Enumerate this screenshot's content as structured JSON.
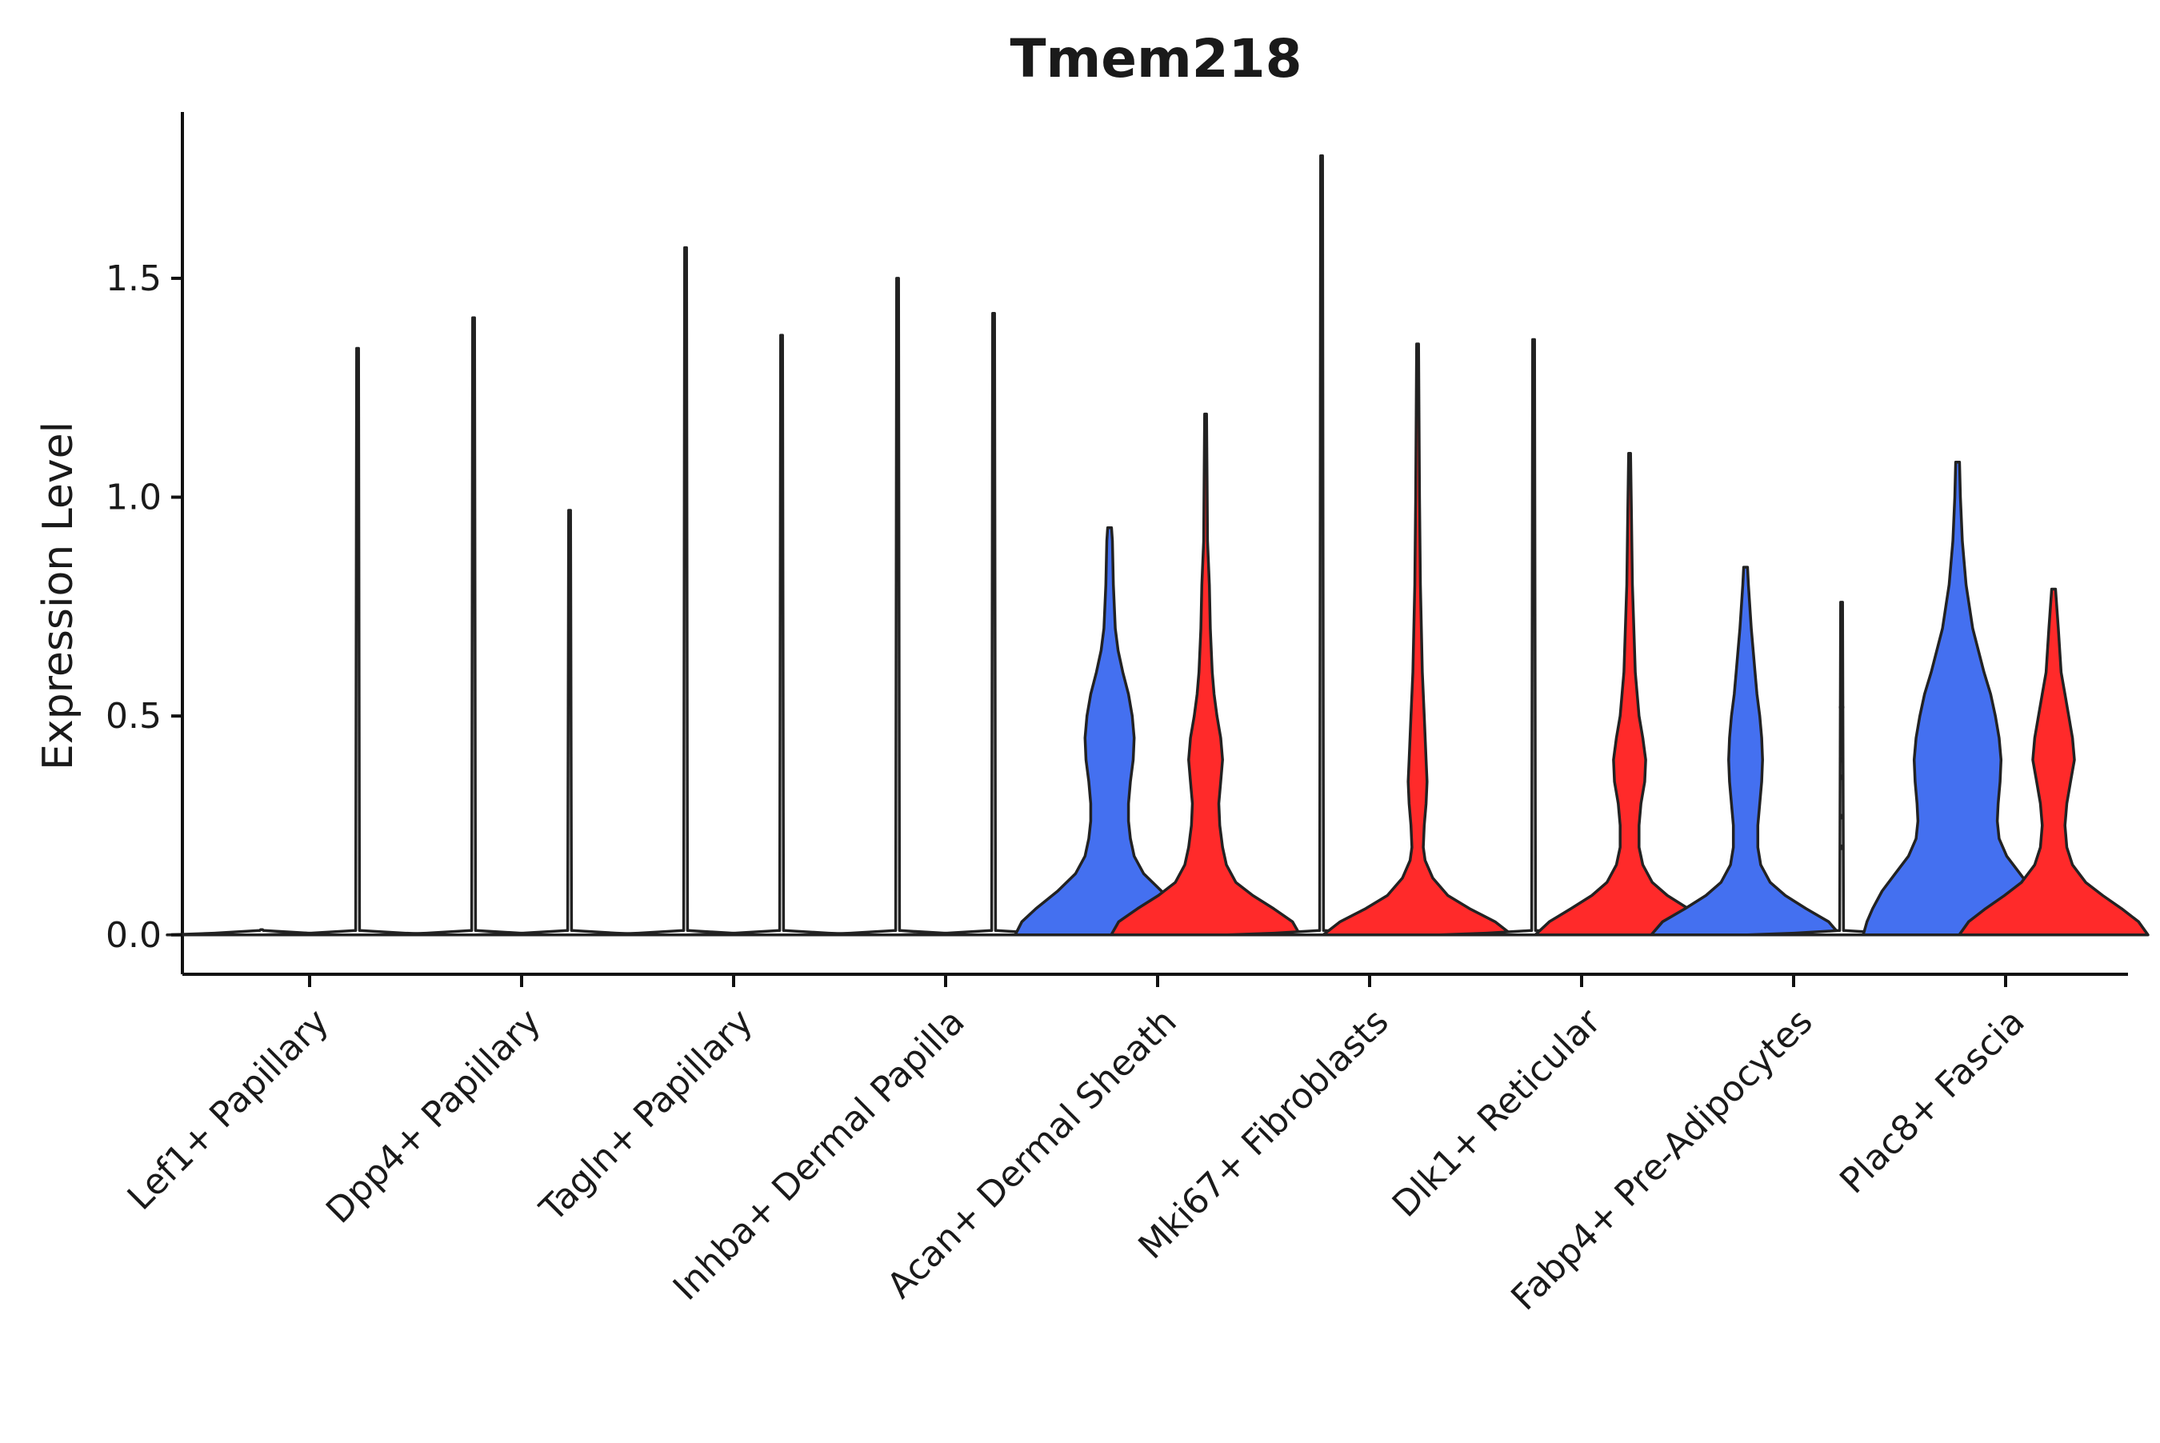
{
  "chart_data": {
    "type": "violin",
    "title": "Tmem218",
    "xlabel": "",
    "ylabel": "Expression Level",
    "ylim": [
      -0.09,
      1.88
    ],
    "yticks": [
      0.0,
      0.5,
      1.0,
      1.5
    ],
    "ytick_labels": [
      "0.0",
      "0.5",
      "1.0",
      "1.5"
    ],
    "grid": false,
    "legend": "none",
    "colors": {
      "group1": "#4470f0",
      "group2": "#ff2a2a",
      "flat": "#ffffff",
      "outline": "#222222"
    },
    "categories": [
      "Lef1+ Papillary",
      "Dpp4+ Papillary",
      "Tagln+ Papillary",
      "Inhba+ Dermal Papilla",
      "Acan+ Dermal Sheath",
      "Mki67+ Fibroblasts",
      "Dlk1+ Reticular",
      "Fabp4+ Pre-Adipocytes",
      "Plac8+ Fascia"
    ],
    "violins": [
      {
        "category": "Lef1+ Papillary",
        "group": "group1",
        "max": 0.0,
        "filled": false,
        "profile": "flat"
      },
      {
        "category": "Lef1+ Papillary",
        "group": "group2",
        "max": 1.34,
        "filled": false,
        "profile": "flat"
      },
      {
        "category": "Dpp4+ Papillary",
        "group": "group1",
        "max": 1.41,
        "filled": false,
        "profile": "flat"
      },
      {
        "category": "Dpp4+ Papillary",
        "group": "group2",
        "max": 0.97,
        "filled": false,
        "profile": "flat"
      },
      {
        "category": "Tagln+ Papillary",
        "group": "group1",
        "max": 1.57,
        "filled": false,
        "profile": "flat"
      },
      {
        "category": "Tagln+ Papillary",
        "group": "group2",
        "max": 1.37,
        "filled": false,
        "profile": "flat"
      },
      {
        "category": "Inhba+ Dermal Papilla",
        "group": "group1",
        "max": 1.5,
        "filled": false,
        "profile": "flat"
      },
      {
        "category": "Inhba+ Dermal Papilla",
        "group": "group2",
        "max": 1.42,
        "filled": false,
        "profile": "flat"
      },
      {
        "category": "Acan+ Dermal Sheath",
        "group": "group1",
        "max": 0.93,
        "filled": true,
        "profile": "A"
      },
      {
        "category": "Acan+ Dermal Sheath",
        "group": "group2",
        "max": 1.19,
        "filled": true,
        "profile": "B"
      },
      {
        "category": "Mki67+ Fibroblasts",
        "group": "group1",
        "max": 1.78,
        "filled": false,
        "profile": "flat"
      },
      {
        "category": "Mki67+ Fibroblasts",
        "group": "group2",
        "max": 1.35,
        "filled": true,
        "profile": "C"
      },
      {
        "category": "Dlk1+ Reticular",
        "group": "group1",
        "max": 1.36,
        "filled": false,
        "profile": "flat"
      },
      {
        "category": "Dlk1+ Reticular",
        "group": "group2",
        "max": 1.1,
        "filled": true,
        "profile": "D"
      },
      {
        "category": "Fabp4+ Pre-Adipocytes",
        "group": "group1",
        "max": 0.84,
        "filled": true,
        "profile": "E"
      },
      {
        "category": "Fabp4+ Pre-Adipocytes",
        "group": "group2",
        "max": 0.76,
        "filled": false,
        "profile": "flat"
      },
      {
        "category": "Plac8+ Fascia",
        "group": "group1",
        "max": 1.08,
        "filled": true,
        "profile": "F"
      },
      {
        "category": "Plac8+ Fascia",
        "group": "group2",
        "max": 0.79,
        "filled": true,
        "profile": "G"
      }
    ],
    "profiles": {
      "A": [
        [
          0.0,
          1.0
        ],
        [
          0.03,
          0.93
        ],
        [
          0.06,
          0.78
        ],
        [
          0.1,
          0.55
        ],
        [
          0.14,
          0.36
        ],
        [
          0.18,
          0.26
        ],
        [
          0.22,
          0.22
        ],
        [
          0.26,
          0.2
        ],
        [
          0.3,
          0.2
        ],
        [
          0.35,
          0.22
        ],
        [
          0.4,
          0.25
        ],
        [
          0.45,
          0.26
        ],
        [
          0.5,
          0.24
        ],
        [
          0.55,
          0.2
        ],
        [
          0.6,
          0.14
        ],
        [
          0.65,
          0.09
        ],
        [
          0.7,
          0.06
        ],
        [
          0.8,
          0.04
        ],
        [
          0.9,
          0.03
        ],
        [
          0.93,
          0.02
        ]
      ],
      "B": [
        [
          0.0,
          1.0
        ],
        [
          0.03,
          0.92
        ],
        [
          0.06,
          0.72
        ],
        [
          0.09,
          0.5
        ],
        [
          0.12,
          0.32
        ],
        [
          0.16,
          0.22
        ],
        [
          0.2,
          0.18
        ],
        [
          0.25,
          0.15
        ],
        [
          0.3,
          0.14
        ],
        [
          0.35,
          0.16
        ],
        [
          0.4,
          0.18
        ],
        [
          0.45,
          0.16
        ],
        [
          0.5,
          0.12
        ],
        [
          0.55,
          0.09
        ],
        [
          0.6,
          0.07
        ],
        [
          0.7,
          0.05
        ],
        [
          0.8,
          0.04
        ],
        [
          0.9,
          0.02
        ],
        [
          1.05,
          0.015
        ],
        [
          1.19,
          0.01
        ]
      ],
      "C": [
        [
          0.0,
          1.0
        ],
        [
          0.03,
          0.82
        ],
        [
          0.06,
          0.55
        ],
        [
          0.09,
          0.32
        ],
        [
          0.13,
          0.16
        ],
        [
          0.17,
          0.08
        ],
        [
          0.2,
          0.06
        ],
        [
          0.25,
          0.07
        ],
        [
          0.3,
          0.09
        ],
        [
          0.35,
          0.1
        ],
        [
          0.4,
          0.09
        ],
        [
          0.5,
          0.07
        ],
        [
          0.6,
          0.05
        ],
        [
          0.8,
          0.03
        ],
        [
          1.0,
          0.02
        ],
        [
          1.35,
          0.01
        ]
      ],
      "D": [
        [
          0.0,
          1.0
        ],
        [
          0.03,
          0.85
        ],
        [
          0.06,
          0.62
        ],
        [
          0.09,
          0.4
        ],
        [
          0.12,
          0.24
        ],
        [
          0.16,
          0.14
        ],
        [
          0.2,
          0.1
        ],
        [
          0.25,
          0.1
        ],
        [
          0.3,
          0.12
        ],
        [
          0.35,
          0.16
        ],
        [
          0.4,
          0.17
        ],
        [
          0.45,
          0.14
        ],
        [
          0.5,
          0.1
        ],
        [
          0.6,
          0.06
        ],
        [
          0.8,
          0.03
        ],
        [
          0.95,
          0.02
        ],
        [
          1.1,
          0.01
        ]
      ],
      "E": [
        [
          0.0,
          1.0
        ],
        [
          0.03,
          0.88
        ],
        [
          0.06,
          0.64
        ],
        [
          0.09,
          0.42
        ],
        [
          0.12,
          0.26
        ],
        [
          0.16,
          0.16
        ],
        [
          0.2,
          0.13
        ],
        [
          0.25,
          0.13
        ],
        [
          0.3,
          0.15
        ],
        [
          0.35,
          0.17
        ],
        [
          0.4,
          0.18
        ],
        [
          0.45,
          0.17
        ],
        [
          0.5,
          0.15
        ],
        [
          0.55,
          0.12
        ],
        [
          0.6,
          0.1
        ],
        [
          0.7,
          0.06
        ],
        [
          0.8,
          0.03
        ],
        [
          0.84,
          0.02
        ]
      ],
      "F": [
        [
          0.0,
          1.0
        ],
        [
          0.03,
          0.96
        ],
        [
          0.06,
          0.9
        ],
        [
          0.1,
          0.8
        ],
        [
          0.14,
          0.66
        ],
        [
          0.18,
          0.52
        ],
        [
          0.22,
          0.44
        ],
        [
          0.26,
          0.42
        ],
        [
          0.3,
          0.43
        ],
        [
          0.35,
          0.45
        ],
        [
          0.4,
          0.46
        ],
        [
          0.45,
          0.44
        ],
        [
          0.5,
          0.4
        ],
        [
          0.55,
          0.35
        ],
        [
          0.6,
          0.28
        ],
        [
          0.7,
          0.16
        ],
        [
          0.8,
          0.09
        ],
        [
          0.9,
          0.05
        ],
        [
          1.0,
          0.03
        ],
        [
          1.08,
          0.02
        ]
      ],
      "G": [
        [
          0.0,
          1.0
        ],
        [
          0.03,
          0.9
        ],
        [
          0.06,
          0.72
        ],
        [
          0.09,
          0.52
        ],
        [
          0.12,
          0.34
        ],
        [
          0.16,
          0.2
        ],
        [
          0.2,
          0.14
        ],
        [
          0.25,
          0.12
        ],
        [
          0.3,
          0.14
        ],
        [
          0.35,
          0.18
        ],
        [
          0.4,
          0.22
        ],
        [
          0.45,
          0.2
        ],
        [
          0.5,
          0.16
        ],
        [
          0.55,
          0.12
        ],
        [
          0.6,
          0.08
        ],
        [
          0.7,
          0.05
        ],
        [
          0.79,
          0.02
        ]
      ]
    },
    "outlier_points": [
      {
        "category": "Fabp4+ Pre-Adipocytes",
        "group": "group2",
        "values": [
          0.2,
          0.27,
          0.36,
          0.4,
          0.52
        ]
      }
    ]
  }
}
